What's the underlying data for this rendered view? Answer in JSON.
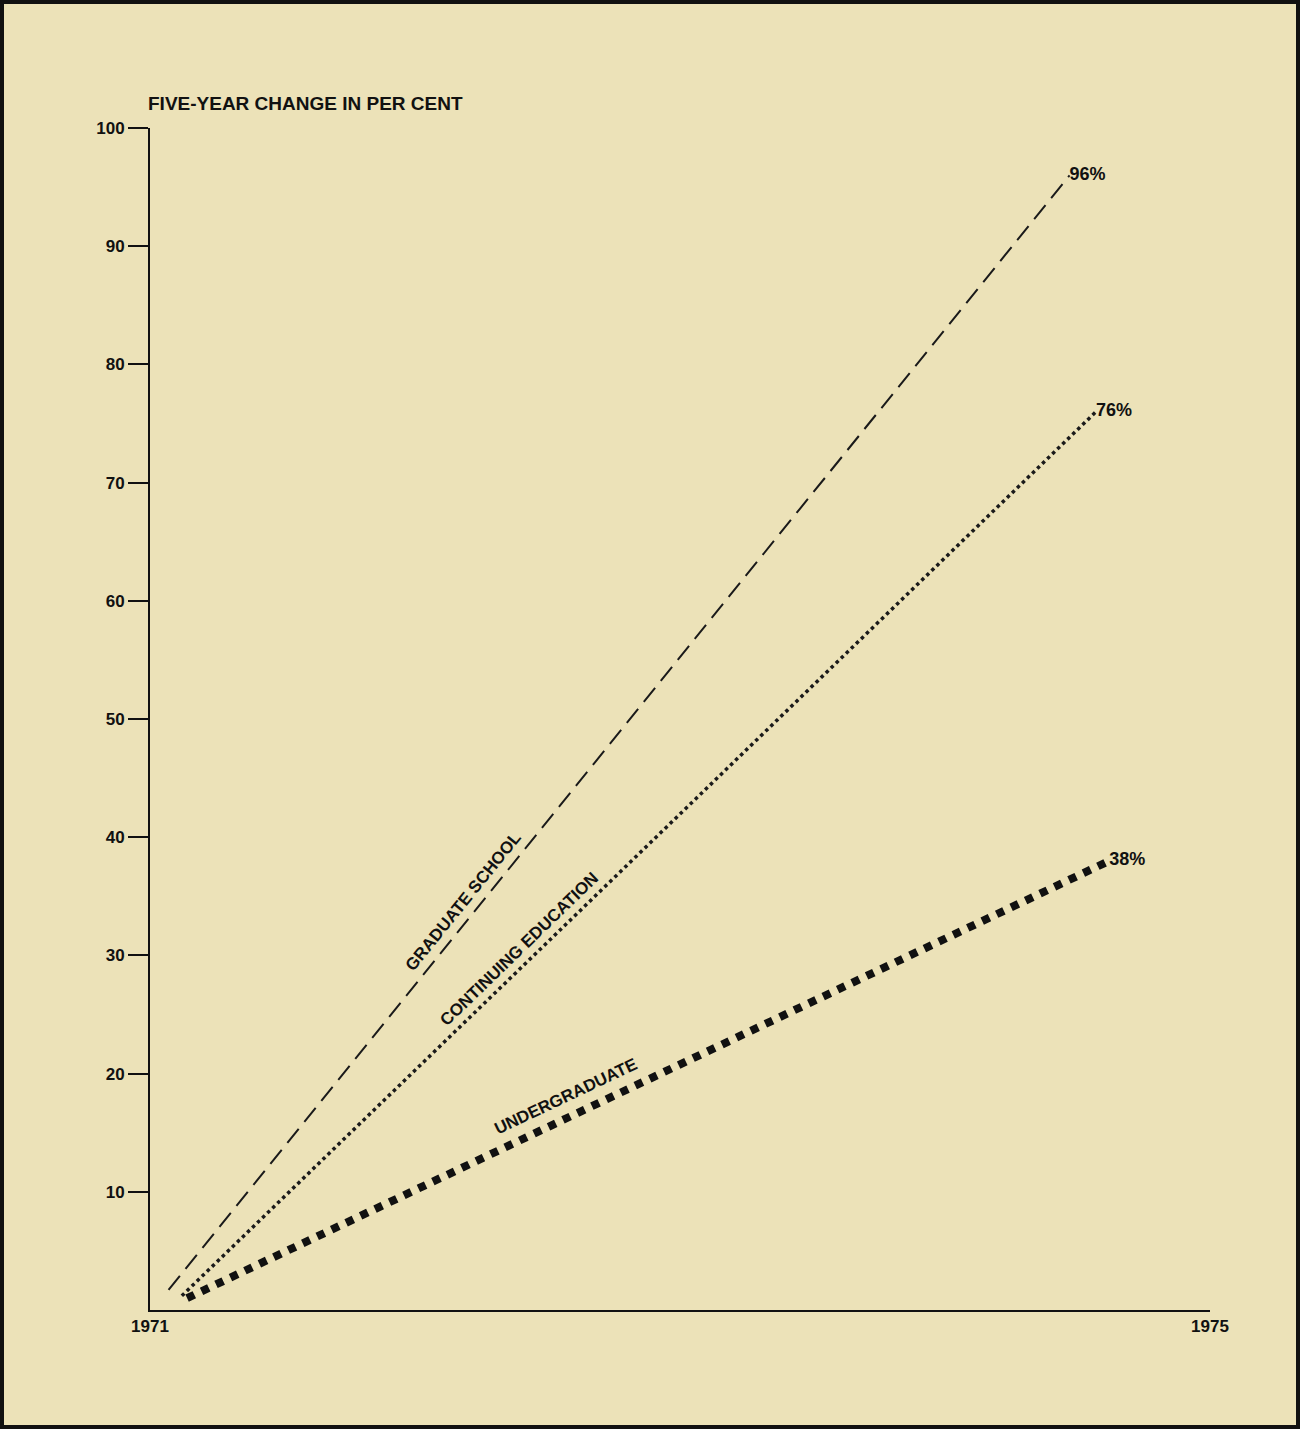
{
  "chart_data": {
    "type": "line",
    "title": "FIVE-YEAR CHANGE IN PER CENT",
    "xlim": [
      1971,
      1975
    ],
    "xticks": [
      1971,
      1975
    ],
    "ylim": [
      0,
      100
    ],
    "yticks": [
      10,
      20,
      30,
      40,
      50,
      60,
      70,
      80,
      90,
      100
    ],
    "grid": false,
    "data_labels": true,
    "series": [
      {
        "name": "GRADUATE SCHOOL",
        "color": "#1a1a1a",
        "line_style": "dashed",
        "x": [
          1971.07,
          1974.47
        ],
        "values": [
          1.7,
          96
        ],
        "value_labels": [
          null,
          "96%"
        ]
      },
      {
        "name": "CONTINUING EDUCATION",
        "color": "#1a1a1a",
        "line_style": "dotted",
        "x": [
          1971.12,
          1974.57
        ],
        "values": [
          1.2,
          76
        ],
        "value_labels": [
          null,
          "76%"
        ]
      },
      {
        "name": "UNDERGRADUATE",
        "color": "#111111",
        "line_style": "heavy_dotted",
        "x": [
          1971.14,
          1974.62
        ],
        "values": [
          1.0,
          38
        ],
        "value_labels": [
          null,
          "38%"
        ]
      }
    ]
  }
}
